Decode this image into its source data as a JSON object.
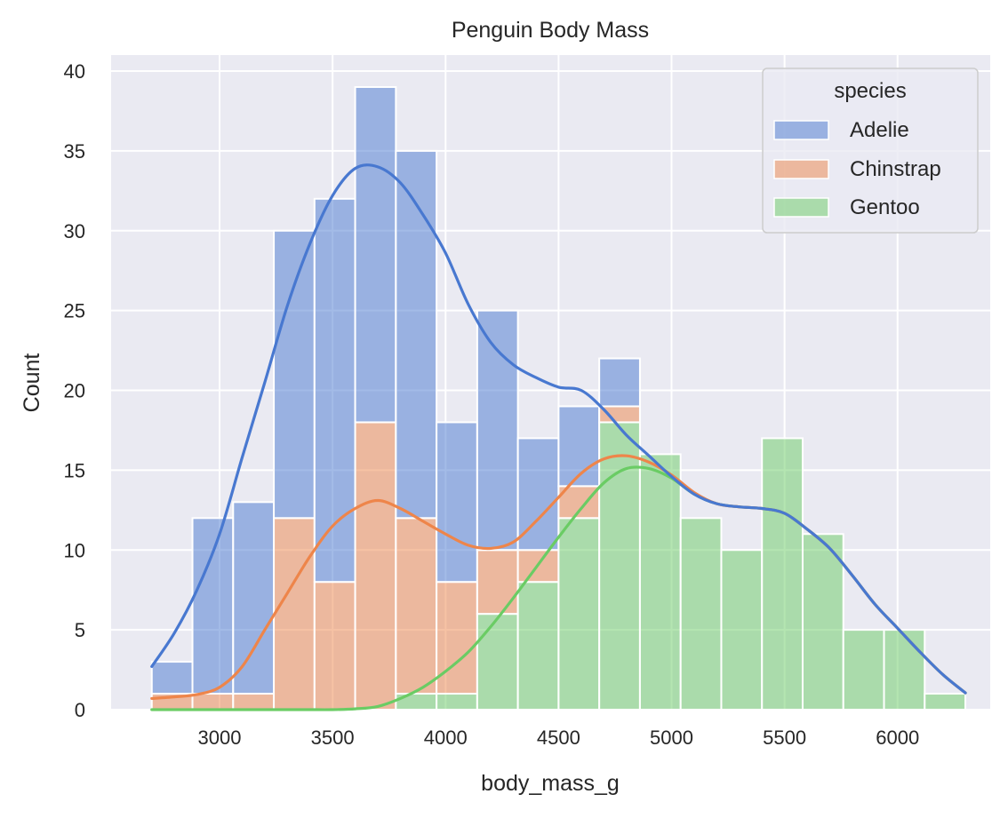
{
  "chart_data": {
    "type": "bar",
    "stacked": true,
    "title": "Penguin Body Mass",
    "xlabel": "body_mass_g",
    "ylabel": "Count",
    "xlim": [
      2520,
      6410
    ],
    "ylim": [
      0,
      41
    ],
    "grid": true,
    "background": "#eaeaf2",
    "xticks": [
      3000,
      3500,
      4000,
      4500,
      5000,
      5500,
      6000
    ],
    "xtick_labels": [
      "3000",
      "3500",
      "4000",
      "4500",
      "5000",
      "5500",
      "6000"
    ],
    "yticks": [
      0,
      5,
      10,
      15,
      20,
      25,
      30,
      35,
      40
    ],
    "ytick_labels": [
      "0",
      "5",
      "10",
      "15",
      "20",
      "25",
      "30",
      "35",
      "40"
    ],
    "bin_edges": [
      2700,
      2880,
      3060,
      3240,
      3420,
      3600,
      3780,
      3960,
      4140,
      4320,
      4500,
      4680,
      4860,
      5040,
      5220,
      5400,
      5580,
      5760,
      5940,
      6120,
      6300
    ],
    "legend": {
      "title": "species",
      "placement": "top-right"
    },
    "series": [
      {
        "name": "Adelie",
        "color": "#4878d0",
        "values": [
          2,
          11,
          12,
          18,
          24,
          21,
          23,
          10,
          15,
          7,
          5,
          3,
          0,
          0,
          0,
          0,
          0,
          0,
          0,
          0
        ]
      },
      {
        "name": "Chinstrap",
        "color": "#ee854a",
        "values": [
          1,
          1,
          1,
          12,
          8,
          18,
          11,
          7,
          4,
          2,
          2,
          1,
          0,
          0,
          0,
          0,
          0,
          0,
          0,
          0
        ]
      },
      {
        "name": "Gentoo",
        "color": "#6acc64",
        "values": [
          0,
          0,
          0,
          0,
          0,
          0,
          1,
          1,
          6,
          8,
          12,
          18,
          16,
          12,
          10,
          17,
          11,
          5,
          5,
          1
        ]
      }
    ],
    "kde_stacked": {
      "x": [
        2700,
        2800,
        2900,
        3000,
        3100,
        3200,
        3300,
        3400,
        3500,
        3600,
        3700,
        3800,
        3900,
        4000,
        4100,
        4200,
        4300,
        4400,
        4500,
        4600,
        4700,
        4800,
        4900,
        5000,
        5100,
        5200,
        5300,
        5400,
        5500,
        5600,
        5700,
        5800,
        5900,
        6000,
        6100,
        6200,
        6300
      ],
      "Adelie": [
        2.7,
        4.8,
        7.5,
        11,
        15.8,
        20.5,
        25.3,
        29.2,
        32.2,
        33.9,
        34.0,
        33.0,
        31.0,
        28.6,
        25.4,
        23.0,
        21.6,
        20.8,
        20.2,
        20.0,
        18.8,
        17.2,
        15.9,
        14.6,
        13.5,
        12.9,
        12.7,
        12.6,
        12.3,
        11.3,
        10.1,
        8.4,
        6.6,
        5.1,
        3.6,
        2.2,
        1.05
      ],
      "Chinstrap": [
        0.7,
        0.8,
        0.95,
        1.4,
        2.7,
        5.0,
        7.3,
        9.6,
        11.5,
        12.6,
        13.1,
        12.6,
        11.8,
        11.0,
        10.3,
        10.1,
        10.5,
        11.8,
        13.3,
        14.8,
        15.7,
        15.9,
        15.5,
        14.7,
        13.6,
        12.9,
        12.7,
        12.6,
        12.3,
        11.3,
        10.1,
        8.4,
        6.6,
        5.1,
        3.6,
        2.2,
        1.05
      ],
      "Gentoo": [
        0,
        0,
        0,
        0,
        0,
        0,
        0,
        0,
        0,
        0.05,
        0.2,
        0.7,
        1.4,
        2.4,
        3.6,
        5.2,
        7.0,
        8.9,
        10.8,
        12.6,
        14.2,
        15.1,
        15.1,
        14.5,
        13.5,
        12.9,
        12.7,
        12.6,
        12.3,
        11.3,
        10.1,
        8.4,
        6.6,
        5.1,
        3.6,
        2.2,
        1.05
      ]
    }
  }
}
